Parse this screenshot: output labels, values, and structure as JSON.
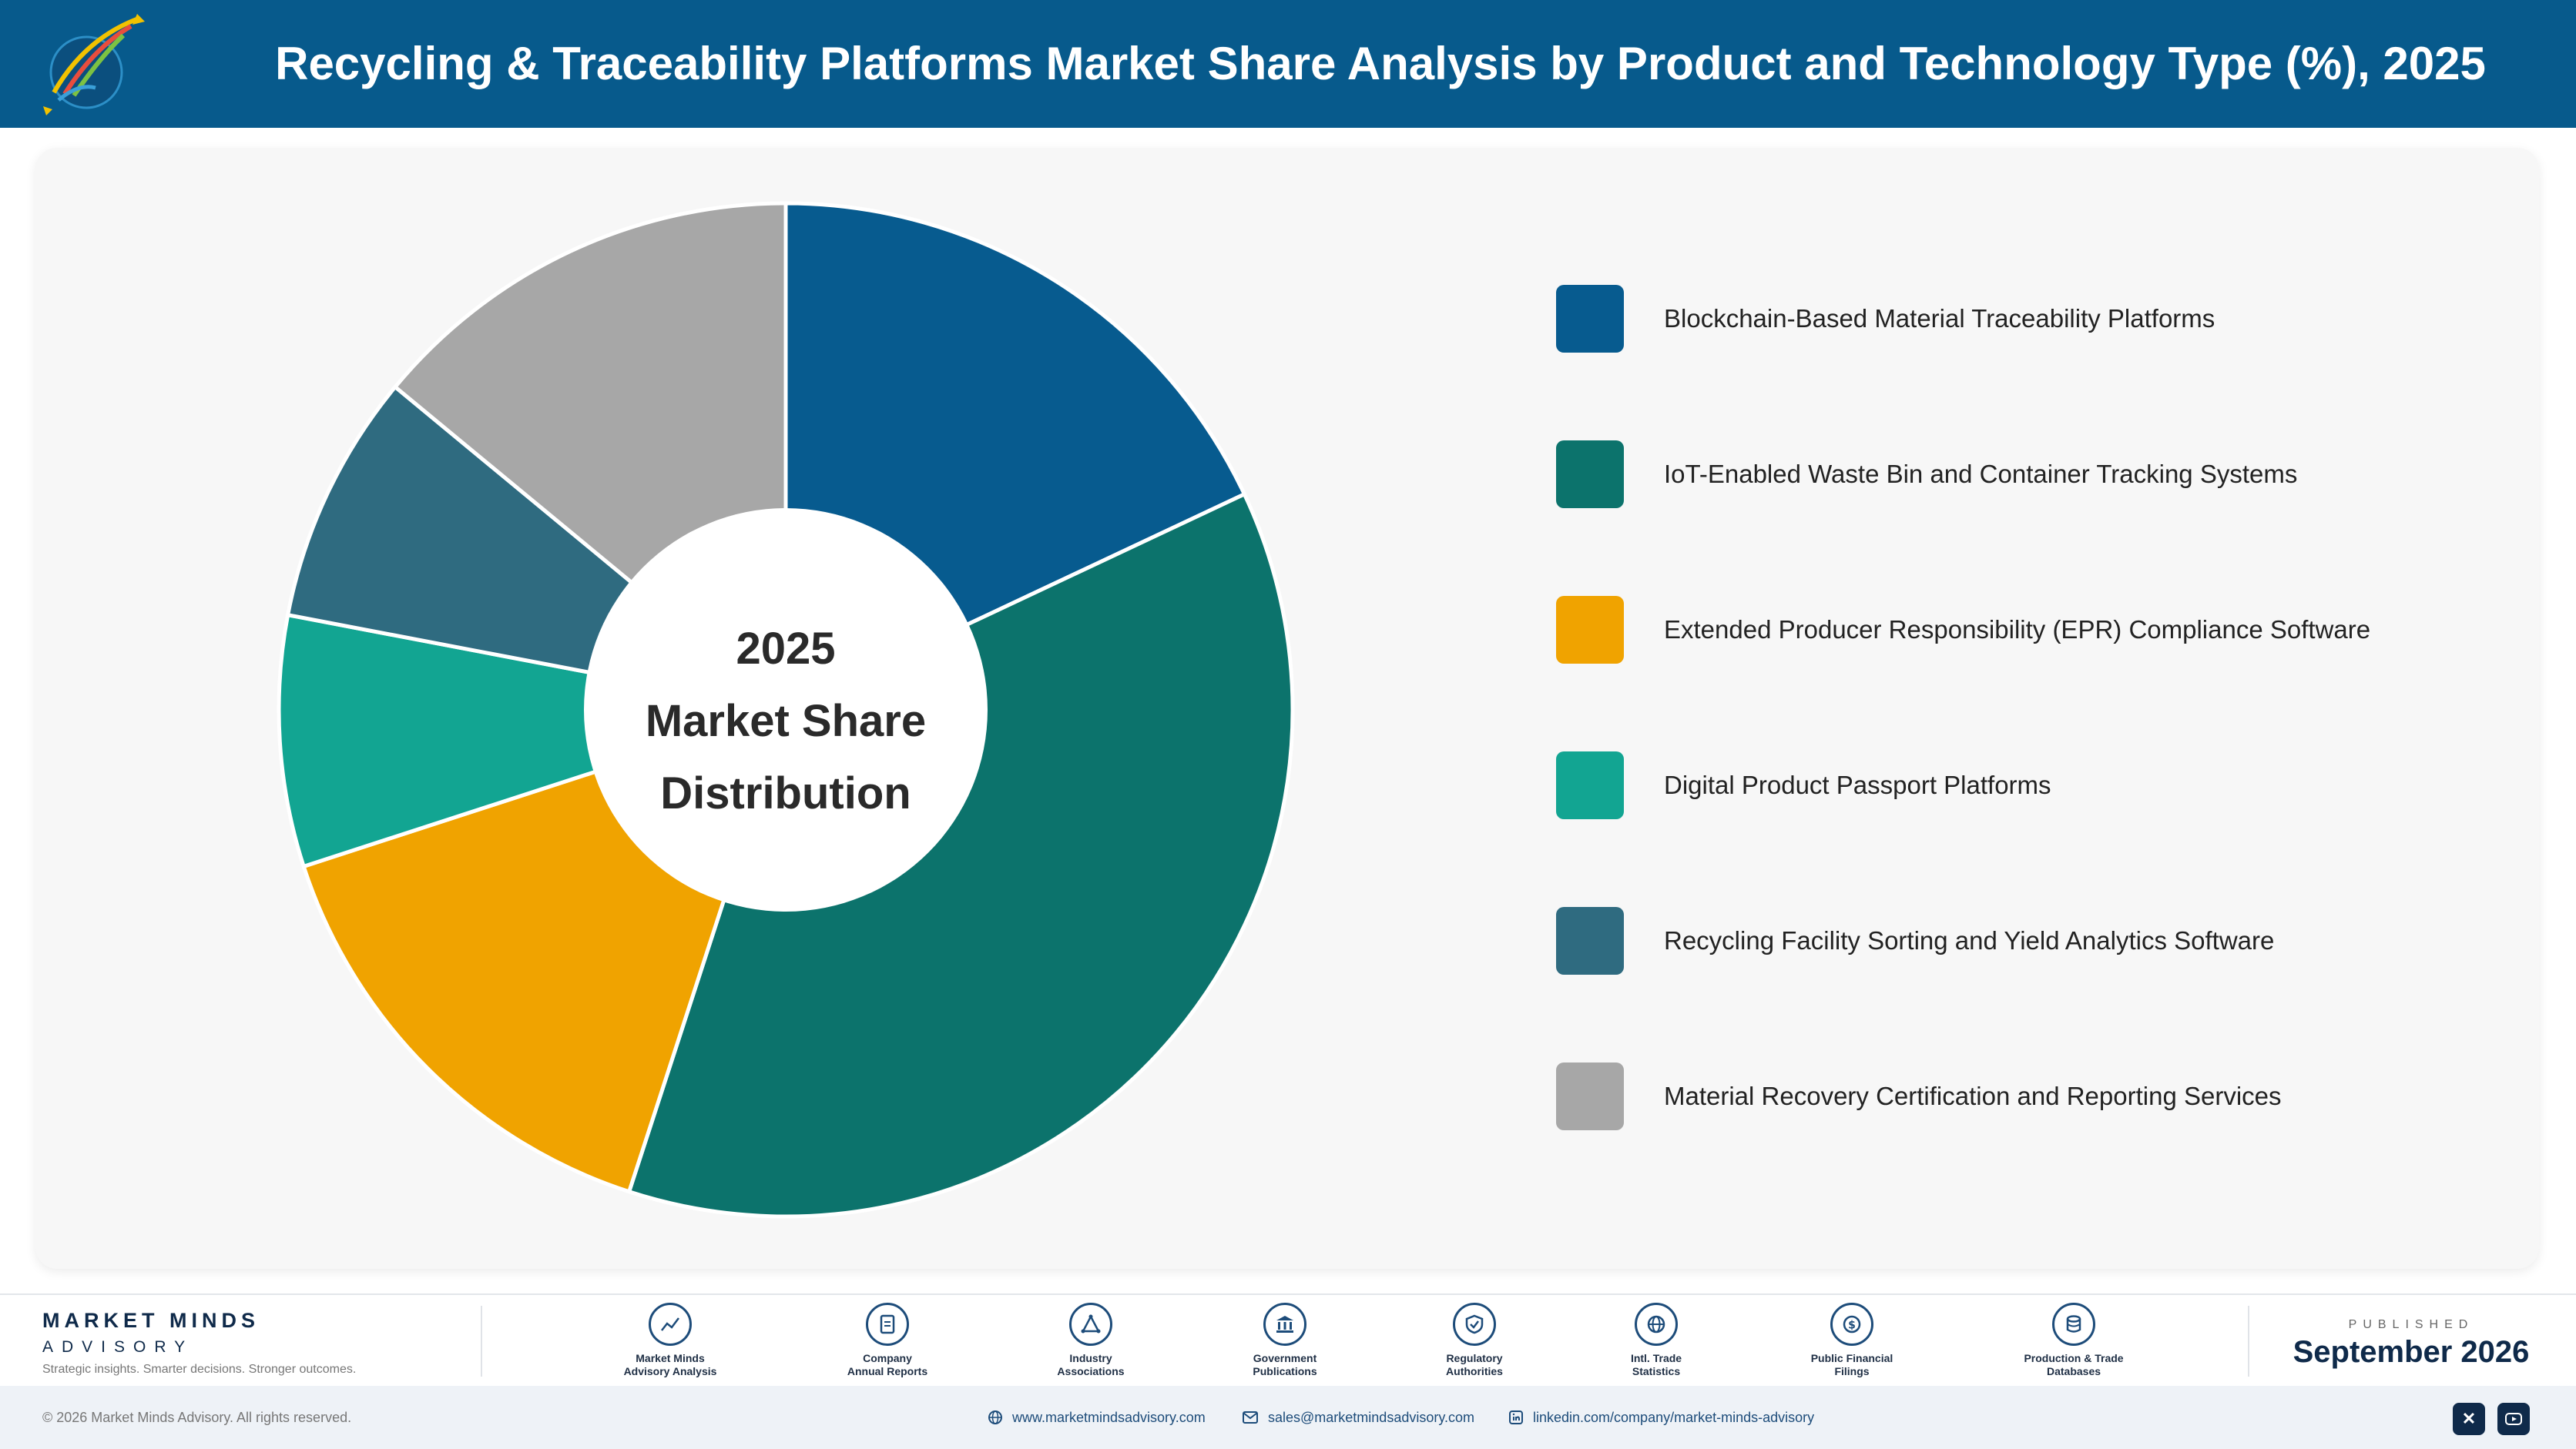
{
  "header": {
    "title": "Recycling & Traceability Platforms Market Share Analysis by Product and Technology Type (%), 2025",
    "logo_icon": "market-minds-logo"
  },
  "chart_data": {
    "type": "pie",
    "style": "donut",
    "title": "Recycling & Traceability Platforms Market Share Analysis by Product and Technology Type (%), 2025",
    "center_text": [
      "2025",
      "Market Share",
      "Distribution"
    ],
    "legend_position": "right",
    "categories": [
      "Blockchain-Based Material Traceability Platforms",
      "IoT-Enabled Waste Bin and Container Tracking Systems",
      "Extended Producer Responsibility (EPR) Compliance Software",
      "Digital Product Passport Platforms",
      "Recycling Facility Sorting and Yield Analytics Software",
      "Material Recovery Certification and Reporting Services"
    ],
    "values": [
      18,
      37,
      15,
      8,
      8,
      14
    ],
    "colors": [
      "#075b8f",
      "#0c736c",
      "#f0a300",
      "#12a592",
      "#2f6b80",
      "#a7a7a7"
    ]
  },
  "footer": {
    "brand_name": "MARKET MINDS",
    "brand_sub": "ADVISORY",
    "tagline": "Strategic insights. Smarter decisions. Stronger outcomes.",
    "sources": [
      {
        "label": "Market Minds\nAdvisory Analysis",
        "icon": "trend-chart-icon"
      },
      {
        "label": "Company\nAnnual Reports",
        "icon": "document-icon"
      },
      {
        "label": "Industry\nAssociations",
        "icon": "network-icon"
      },
      {
        "label": "Government\nPublications",
        "icon": "government-building-icon"
      },
      {
        "label": "Regulatory\nAuthorities",
        "icon": "shield-check-icon"
      },
      {
        "label": "Intl. Trade\nStatistics",
        "icon": "globe-icon"
      },
      {
        "label": "Public Financial\nFilings",
        "icon": "dollar-coin-icon"
      },
      {
        "label": "Production & Trade\nDatabases",
        "icon": "database-icon"
      }
    ],
    "published_label": "PUBLISHED",
    "published_date": "September 2026"
  },
  "bottom_bar": {
    "copyright": "© 2026 Market Minds Advisory. All rights reserved.",
    "website": "www.marketmindsadvisory.com",
    "email": "sales@marketmindsadvisory.com",
    "linkedin": "linkedin.com/company/market-minds-advisory",
    "social": [
      "x-icon",
      "youtube-icon"
    ]
  }
}
